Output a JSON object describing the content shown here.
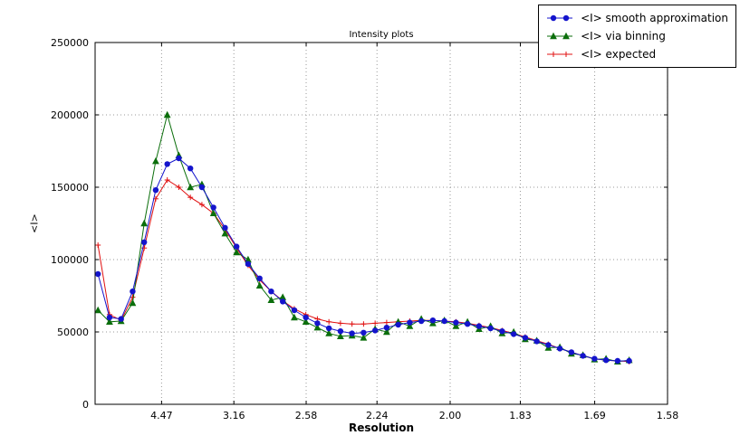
{
  "chart_data": {
    "type": "line",
    "title": "Intensity plots",
    "xlabel": "Resolution",
    "ylabel": "<I>",
    "xlim": [
      0.004,
      0.4006
    ],
    "ylim": [
      0,
      250000
    ],
    "grid": "dotted",
    "legend_position": "upper right (outside top of axes)",
    "x_ticks": [
      {
        "label": "4.47",
        "value": 0.05005
      },
      {
        "label": "3.16",
        "value": 0.10014
      },
      {
        "label": "2.58",
        "value": 0.15023
      },
      {
        "label": "2.24",
        "value": 0.1993
      },
      {
        "label": "2.00",
        "value": 0.25
      },
      {
        "label": "1.83",
        "value": 0.29861
      },
      {
        "label": "1.69",
        "value": 0.35013
      },
      {
        "label": "1.58",
        "value": 0.40058
      }
    ],
    "y_ticks": [
      {
        "label": "0",
        "value": 0
      },
      {
        "label": "50000",
        "value": 50000
      },
      {
        "label": "100000",
        "value": 100000
      },
      {
        "label": "150000",
        "value": 150000
      },
      {
        "label": "200000",
        "value": 200000
      },
      {
        "label": "250000",
        "value": 250000
      }
    ],
    "x": [
      0.006,
      0.014,
      0.022,
      0.03,
      0.038,
      0.046,
      0.054,
      0.062,
      0.07,
      0.078,
      0.086,
      0.094,
      0.102,
      0.11,
      0.118,
      0.126,
      0.134,
      0.142,
      0.15,
      0.158,
      0.166,
      0.174,
      0.182,
      0.19,
      0.198,
      0.206,
      0.214,
      0.222,
      0.23,
      0.238,
      0.246,
      0.254,
      0.262,
      0.27,
      0.278,
      0.286,
      0.294,
      0.302,
      0.31,
      0.318,
      0.326,
      0.334,
      0.342,
      0.35,
      0.358,
      0.366,
      0.374
    ],
    "series": [
      {
        "label": "<I> smooth approximation",
        "color": "#1414cc",
        "marker": "circle",
        "values": [
          90000,
          60000,
          59000,
          78000,
          112000,
          148000,
          166000,
          170000,
          163000,
          150000,
          136000,
          122000,
          109000,
          97000,
          87000,
          78000,
          71000,
          65000,
          60000,
          56000,
          52500,
          50500,
          49000,
          49500,
          51000,
          53000,
          55000,
          56500,
          57500,
          58000,
          57500,
          56500,
          55500,
          54000,
          52500,
          50500,
          48500,
          46000,
          43500,
          41000,
          38500,
          36000,
          33500,
          31500,
          30500,
          30000,
          30000
        ]
      },
      {
        "label": "<I> via binning",
        "color": "#0b6e0b",
        "marker": "triangle",
        "values": [
          65000,
          57000,
          57500,
          70000,
          125000,
          168000,
          200000,
          172000,
          150000,
          152000,
          132000,
          118000,
          105000,
          100000,
          82000,
          72000,
          74000,
          60000,
          57000,
          53000,
          49000,
          47000,
          47500,
          46000,
          52000,
          50000,
          57000,
          54000,
          59000,
          56000,
          58000,
          54000,
          57000,
          52000,
          54000,
          49000,
          50000,
          45000,
          44000,
          39000,
          39500,
          35000,
          34000,
          31000,
          31500,
          29500,
          30500
        ]
      },
      {
        "label": "<I> expected",
        "color": "#e01010",
        "marker": "plus",
        "values": [
          110000,
          62000,
          58000,
          74000,
          108000,
          142000,
          155000,
          150000,
          143000,
          138000,
          132000,
          121000,
          108000,
          96000,
          86000,
          78000,
          71500,
          66000,
          62000,
          59000,
          57000,
          56000,
          55500,
          55500,
          56000,
          56500,
          57000,
          57500,
          58000,
          58000,
          57500,
          57000,
          56000,
          54500,
          53000,
          51000,
          49000,
          46500,
          44000,
          41500,
          38500,
          36000,
          33500,
          31500,
          30500,
          30000,
          29500
        ]
      }
    ]
  }
}
